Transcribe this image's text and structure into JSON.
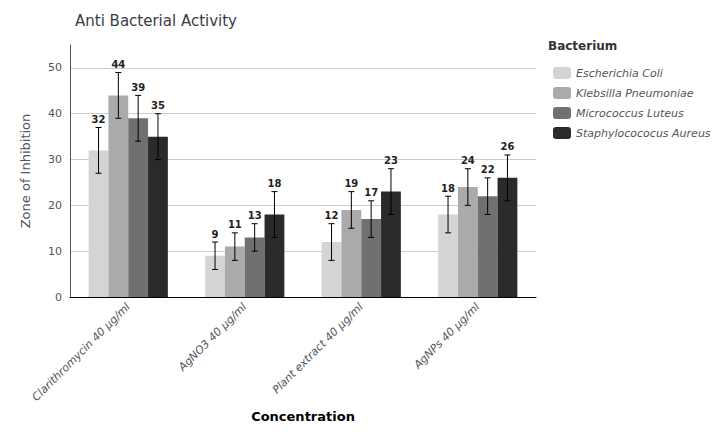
{
  "chart_data": {
    "type": "bar",
    "title": "Anti Bacterial Activity",
    "xlabel": "Concentration",
    "ylabel": "Zone of Inhibition",
    "categories": [
      "Clarithromycin 40 μg/ml",
      "AgNO3 40 μg/ml",
      "Plant extract 40 μg/ml",
      "AgNPs 40 μg/ml"
    ],
    "series": [
      {
        "name": "Escherichia Coli",
        "color": "#d4d4d4",
        "values": [
          32,
          9,
          12,
          18
        ],
        "errors": [
          5,
          3,
          4,
          4
        ]
      },
      {
        "name": "Klebsilla Pneumoniae",
        "color": "#aaaaaa",
        "values": [
          44,
          11,
          19,
          24
        ],
        "errors": [
          5,
          3,
          4,
          4
        ]
      },
      {
        "name": "Micrococcus Luteus",
        "color": "#707070",
        "values": [
          39,
          13,
          17,
          22
        ],
        "errors": [
          5,
          3,
          4,
          4
        ]
      },
      {
        "name": "Staphylocococus Aureus",
        "color": "#2a2a2a",
        "values": [
          35,
          18,
          23,
          26
        ],
        "errors": [
          5,
          5,
          5,
          5
        ]
      }
    ],
    "ylim": [
      0,
      55
    ],
    "yticks": [
      0,
      10,
      20,
      30,
      40,
      50
    ],
    "grid": true,
    "legend": "upper right",
    "legend_title": "Bacterium",
    "data_labels": true
  }
}
